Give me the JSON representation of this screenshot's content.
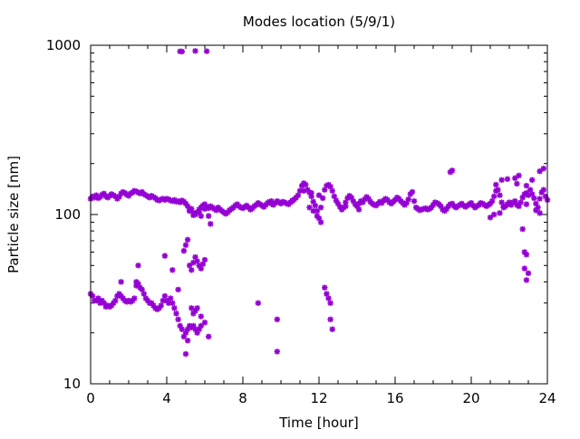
{
  "chart_data": {
    "type": "scatter",
    "title": "Modes location (5/9/1)",
    "xlabel": "Time [hour]",
    "ylabel": "Particle size [nm]",
    "xlim": [
      0,
      24
    ],
    "ylim": [
      10,
      1000
    ],
    "yscale": "log",
    "grid": false,
    "legend": "none",
    "x_ticks": [
      0,
      4,
      8,
      12,
      16,
      20,
      24
    ],
    "x_tick_labels": [
      "0",
      "4",
      "8",
      "12",
      "16",
      "20",
      "24"
    ],
    "y_ticks": [
      10,
      100,
      1000
    ],
    "y_tick_labels": [
      "10",
      "100",
      "1000"
    ],
    "marker_color": "#9400d3",
    "marker": "asterisk",
    "points": [
      [
        0.0,
        124
      ],
      [
        0.1,
        128
      ],
      [
        0.2,
        126
      ],
      [
        0.3,
        130
      ],
      [
        0.4,
        125
      ],
      [
        0.5,
        127
      ],
      [
        0.6,
        131
      ],
      [
        0.7,
        133
      ],
      [
        0.8,
        128
      ],
      [
        0.9,
        126
      ],
      [
        1.0,
        129
      ],
      [
        1.1,
        132
      ],
      [
        1.2,
        130
      ],
      [
        1.3,
        128
      ],
      [
        1.4,
        124
      ],
      [
        1.5,
        127
      ],
      [
        1.6,
        133
      ],
      [
        1.7,
        136
      ],
      [
        1.8,
        134
      ],
      [
        1.9,
        131
      ],
      [
        2.0,
        129
      ],
      [
        2.1,
        133
      ],
      [
        2.2,
        135
      ],
      [
        2.3,
        138
      ],
      [
        2.4,
        137
      ],
      [
        2.5,
        135
      ],
      [
        2.6,
        133
      ],
      [
        2.7,
        136
      ],
      [
        2.8,
        132
      ],
      [
        2.9,
        130
      ],
      [
        3.0,
        128
      ],
      [
        3.1,
        126
      ],
      [
        3.2,
        129
      ],
      [
        3.3,
        127
      ],
      [
        3.4,
        125
      ],
      [
        3.5,
        122
      ],
      [
        3.6,
        121
      ],
      [
        3.7,
        123
      ],
      [
        3.8,
        124
      ],
      [
        3.9,
        122
      ],
      [
        4.0,
        124
      ],
      [
        4.1,
        123
      ],
      [
        4.2,
        121
      ],
      [
        4.3,
        120
      ],
      [
        4.4,
        122
      ],
      [
        4.5,
        119
      ],
      [
        4.6,
        120
      ],
      [
        4.7,
        118
      ],
      [
        4.8,
        121
      ],
      [
        4.9,
        119
      ],
      [
        5.0,
        116
      ],
      [
        5.1,
        112
      ],
      [
        5.2,
        105
      ],
      [
        5.3,
        108
      ],
      [
        5.4,
        102
      ],
      [
        5.5,
        100
      ],
      [
        5.6,
        103
      ],
      [
        5.7,
        107
      ],
      [
        5.8,
        110
      ],
      [
        5.9,
        113
      ],
      [
        6.0,
        115
      ],
      [
        6.1,
        111
      ],
      [
        6.2,
        109
      ],
      [
        6.3,
        112
      ],
      [
        6.4,
        110
      ],
      [
        6.5,
        108
      ],
      [
        6.6,
        106
      ],
      [
        6.7,
        110
      ],
      [
        6.8,
        107
      ],
      [
        6.9,
        105
      ],
      [
        7.0,
        103
      ],
      [
        7.1,
        101
      ],
      [
        7.2,
        103
      ],
      [
        7.3,
        106
      ],
      [
        7.4,
        108
      ],
      [
        7.5,
        110
      ],
      [
        7.6,
        113
      ],
      [
        7.7,
        115
      ],
      [
        7.8,
        112
      ],
      [
        7.9,
        110
      ],
      [
        8.0,
        109
      ],
      [
        8.1,
        111
      ],
      [
        8.2,
        113
      ],
      [
        8.3,
        110
      ],
      [
        8.4,
        107
      ],
      [
        8.5,
        109
      ],
      [
        8.6,
        112
      ],
      [
        8.7,
        114
      ],
      [
        8.8,
        117
      ],
      [
        8.9,
        115
      ],
      [
        9.0,
        113
      ],
      [
        9.1,
        111
      ],
      [
        9.2,
        114
      ],
      [
        9.3,
        117
      ],
      [
        9.4,
        119
      ],
      [
        9.5,
        116
      ],
      [
        9.6,
        114
      ],
      [
        9.7,
        117
      ],
      [
        9.8,
        120
      ],
      [
        9.9,
        118
      ],
      [
        10.0,
        116
      ],
      [
        10.1,
        119
      ],
      [
        10.2,
        118
      ],
      [
        10.3,
        116
      ],
      [
        10.4,
        115
      ],
      [
        10.5,
        118
      ],
      [
        10.6,
        121
      ],
      [
        10.7,
        123
      ],
      [
        10.8,
        126
      ],
      [
        10.9,
        130
      ],
      [
        11.0,
        138
      ],
      [
        11.1,
        148
      ],
      [
        11.2,
        153
      ],
      [
        11.3,
        150
      ],
      [
        11.4,
        140
      ],
      [
        11.5,
        135
      ],
      [
        11.6,
        128
      ],
      [
        11.7,
        119
      ],
      [
        11.8,
        113
      ],
      [
        11.9,
        105
      ],
      [
        12.0,
        95
      ],
      [
        12.1,
        110
      ],
      [
        12.2,
        125
      ],
      [
        12.3,
        140
      ],
      [
        12.4,
        148
      ],
      [
        12.5,
        150
      ],
      [
        12.6,
        146
      ],
      [
        12.7,
        138
      ],
      [
        12.8,
        128
      ],
      [
        12.9,
        121
      ],
      [
        13.0,
        116
      ],
      [
        13.1,
        111
      ],
      [
        13.2,
        107
      ],
      [
        13.3,
        110
      ],
      [
        13.4,
        118
      ],
      [
        13.5,
        125
      ],
      [
        13.6,
        129
      ],
      [
        13.7,
        126
      ],
      [
        13.8,
        120
      ],
      [
        13.9,
        115
      ],
      [
        14.0,
        112
      ],
      [
        14.1,
        116
      ],
      [
        14.2,
        120
      ],
      [
        14.3,
        118
      ],
      [
        14.4,
        123
      ],
      [
        14.5,
        127
      ],
      [
        14.6,
        124
      ],
      [
        14.7,
        119
      ],
      [
        14.8,
        116
      ],
      [
        14.9,
        114
      ],
      [
        15.0,
        113
      ],
      [
        15.1,
        116
      ],
      [
        15.2,
        119
      ],
      [
        15.3,
        117
      ],
      [
        15.4,
        121
      ],
      [
        15.5,
        124
      ],
      [
        15.6,
        122
      ],
      [
        15.7,
        118
      ],
      [
        15.8,
        116
      ],
      [
        15.9,
        119
      ],
      [
        16.0,
        122
      ],
      [
        16.1,
        126
      ],
      [
        16.2,
        124
      ],
      [
        16.3,
        120
      ],
      [
        16.4,
        117
      ],
      [
        16.5,
        114
      ],
      [
        16.6,
        117
      ],
      [
        16.7,
        123
      ],
      [
        16.8,
        132
      ],
      [
        16.9,
        136
      ],
      [
        17.0,
        120
      ],
      [
        17.1,
        110
      ],
      [
        17.2,
        108
      ],
      [
        17.3,
        106
      ],
      [
        17.4,
        107
      ],
      [
        17.5,
        108
      ],
      [
        17.6,
        109
      ],
      [
        17.7,
        107
      ],
      [
        17.8,
        108
      ],
      [
        17.9,
        110
      ],
      [
        18.0,
        114
      ],
      [
        18.1,
        118
      ],
      [
        18.2,
        117
      ],
      [
        18.3,
        115
      ],
      [
        18.4,
        112
      ],
      [
        18.5,
        107
      ],
      [
        18.6,
        105
      ],
      [
        18.7,
        108
      ],
      [
        18.8,
        112
      ],
      [
        18.9,
        115
      ],
      [
        19.0,
        116
      ],
      [
        19.1,
        112
      ],
      [
        19.2,
        110
      ],
      [
        19.3,
        112
      ],
      [
        19.4,
        114
      ],
      [
        19.5,
        116
      ],
      [
        19.6,
        113
      ],
      [
        19.7,
        111
      ],
      [
        19.8,
        113
      ],
      [
        19.9,
        115
      ],
      [
        20.0,
        117
      ],
      [
        20.1,
        113
      ],
      [
        20.2,
        110
      ],
      [
        20.3,
        112
      ],
      [
        20.4,
        114
      ],
      [
        20.5,
        117
      ],
      [
        20.6,
        116
      ],
      [
        20.7,
        114
      ],
      [
        20.8,
        112
      ],
      [
        20.9,
        114
      ],
      [
        21.0,
        116
      ],
      [
        21.1,
        120
      ],
      [
        21.2,
        128
      ],
      [
        21.3,
        138
      ],
      [
        21.4,
        140
      ],
      [
        21.5,
        130
      ],
      [
        21.6,
        118
      ],
      [
        21.7,
        110
      ],
      [
        21.8,
        112
      ],
      [
        21.9,
        115
      ],
      [
        22.0,
        118
      ],
      [
        22.1,
        114
      ],
      [
        22.2,
        118
      ],
      [
        22.3,
        120
      ],
      [
        22.4,
        114
      ],
      [
        22.5,
        112
      ],
      [
        22.6,
        118
      ],
      [
        22.7,
        126
      ],
      [
        22.8,
        132
      ],
      [
        22.9,
        134
      ],
      [
        23.0,
        130
      ],
      [
        23.1,
        140
      ],
      [
        23.2,
        132
      ],
      [
        23.3,
        125
      ],
      [
        23.4,
        116
      ],
      [
        23.5,
        110
      ],
      [
        23.6,
        124
      ],
      [
        23.7,
        135
      ],
      [
        23.8,
        140
      ],
      [
        23.9,
        128
      ],
      [
        24.0,
        122
      ],
      [
        18.9,
        178
      ],
      [
        19.0,
        182
      ],
      [
        21.3,
        150
      ],
      [
        21.6,
        160
      ],
      [
        21.9,
        162
      ],
      [
        22.3,
        164
      ],
      [
        22.5,
        170
      ],
      [
        22.9,
        148
      ],
      [
        23.2,
        160
      ],
      [
        23.6,
        180
      ],
      [
        23.8,
        187
      ],
      [
        11.2,
        138
      ],
      [
        11.6,
        134
      ],
      [
        12.0,
        130
      ],
      [
        11.5,
        110
      ],
      [
        11.7,
        105
      ],
      [
        11.9,
        98
      ],
      [
        12.1,
        90
      ],
      [
        9.5,
        120
      ],
      [
        10.6,
        120
      ],
      [
        13.4,
        112
      ],
      [
        14.1,
        107
      ],
      [
        21.0,
        96
      ],
      [
        21.2,
        100
      ],
      [
        21.5,
        102
      ],
      [
        21.7,
        112
      ],
      [
        22.4,
        152
      ],
      [
        22.9,
        115
      ],
      [
        23.4,
        106
      ],
      [
        23.6,
        102
      ],
      [
        22.7,
        82
      ],
      [
        22.8,
        60
      ],
      [
        22.9,
        58
      ],
      [
        22.8,
        48
      ],
      [
        22.9,
        41
      ],
      [
        23.0,
        45
      ],
      [
        5.2,
        106
      ],
      [
        5.4,
        99
      ],
      [
        5.5,
        102
      ],
      [
        5.7,
        103
      ],
      [
        5.8,
        98
      ],
      [
        6.0,
        108
      ],
      [
        6.2,
        98
      ],
      [
        6.3,
        88
      ],
      [
        4.7,
        920
      ],
      [
        4.8,
        918
      ],
      [
        5.5,
        925
      ],
      [
        6.1,
        922
      ],
      [
        0.0,
        34
      ],
      [
        0.1,
        33
      ],
      [
        0.2,
        31
      ],
      [
        0.3,
        31
      ],
      [
        0.4,
        32
      ],
      [
        0.5,
        30
      ],
      [
        0.6,
        31
      ],
      [
        0.7,
        30
      ],
      [
        0.8,
        28.5
      ],
      [
        0.9,
        29
      ],
      [
        1.0,
        28.5
      ],
      [
        1.1,
        29
      ],
      [
        1.2,
        30
      ],
      [
        1.3,
        31
      ],
      [
        1.4,
        33
      ],
      [
        1.5,
        34
      ],
      [
        1.6,
        33
      ],
      [
        1.7,
        32
      ],
      [
        1.8,
        31
      ],
      [
        1.9,
        30.5
      ],
      [
        2.0,
        31
      ],
      [
        2.1,
        30.5
      ],
      [
        2.2,
        31
      ],
      [
        2.3,
        32
      ],
      [
        2.4,
        38
      ],
      [
        2.5,
        39
      ],
      [
        2.6,
        37
      ],
      [
        2.7,
        36
      ],
      [
        2.8,
        34
      ],
      [
        2.9,
        32
      ],
      [
        3.0,
        31
      ],
      [
        3.1,
        30
      ],
      [
        3.2,
        30
      ],
      [
        3.3,
        29
      ],
      [
        3.4,
        28
      ],
      [
        3.5,
        27.5
      ],
      [
        3.6,
        28
      ],
      [
        3.7,
        29
      ],
      [
        3.8,
        31
      ],
      [
        3.9,
        33
      ],
      [
        4.0,
        31
      ],
      [
        4.1,
        30
      ],
      [
        4.2,
        32
      ],
      [
        4.3,
        30
      ],
      [
        4.4,
        28
      ],
      [
        4.5,
        26
      ],
      [
        4.6,
        24
      ],
      [
        4.7,
        22
      ],
      [
        4.8,
        21
      ],
      [
        4.9,
        19
      ],
      [
        5.0,
        20
      ],
      [
        5.1,
        21
      ],
      [
        5.2,
        22
      ],
      [
        5.3,
        21.5
      ],
      [
        5.4,
        22
      ],
      [
        5.5,
        21
      ],
      [
        5.6,
        20
      ],
      [
        5.7,
        21
      ],
      [
        5.8,
        22
      ],
      [
        6.0,
        23
      ],
      [
        1.6,
        40
      ],
      [
        2.5,
        50
      ],
      [
        2.4,
        40
      ],
      [
        3.9,
        57
      ],
      [
        4.3,
        47
      ],
      [
        4.6,
        36
      ],
      [
        4.9,
        61
      ],
      [
        5.0,
        66
      ],
      [
        5.1,
        71
      ],
      [
        5.2,
        50
      ],
      [
        5.3,
        47
      ],
      [
        5.4,
        52
      ],
      [
        5.5,
        56
      ],
      [
        5.6,
        53
      ],
      [
        5.7,
        50
      ],
      [
        5.8,
        48
      ],
      [
        5.9,
        51
      ],
      [
        6.0,
        54
      ],
      [
        5.3,
        28
      ],
      [
        5.4,
        26
      ],
      [
        5.5,
        27
      ],
      [
        5.6,
        28
      ],
      [
        5.8,
        25
      ],
      [
        5.0,
        15
      ],
      [
        5.1,
        18
      ],
      [
        6.2,
        19
      ],
      [
        8.8,
        30
      ],
      [
        9.8,
        24
      ],
      [
        9.8,
        15.5
      ],
      [
        12.3,
        37
      ],
      [
        12.4,
        34
      ],
      [
        12.5,
        32
      ],
      [
        12.6,
        30
      ],
      [
        12.6,
        24
      ],
      [
        12.7,
        21
      ]
    ]
  }
}
